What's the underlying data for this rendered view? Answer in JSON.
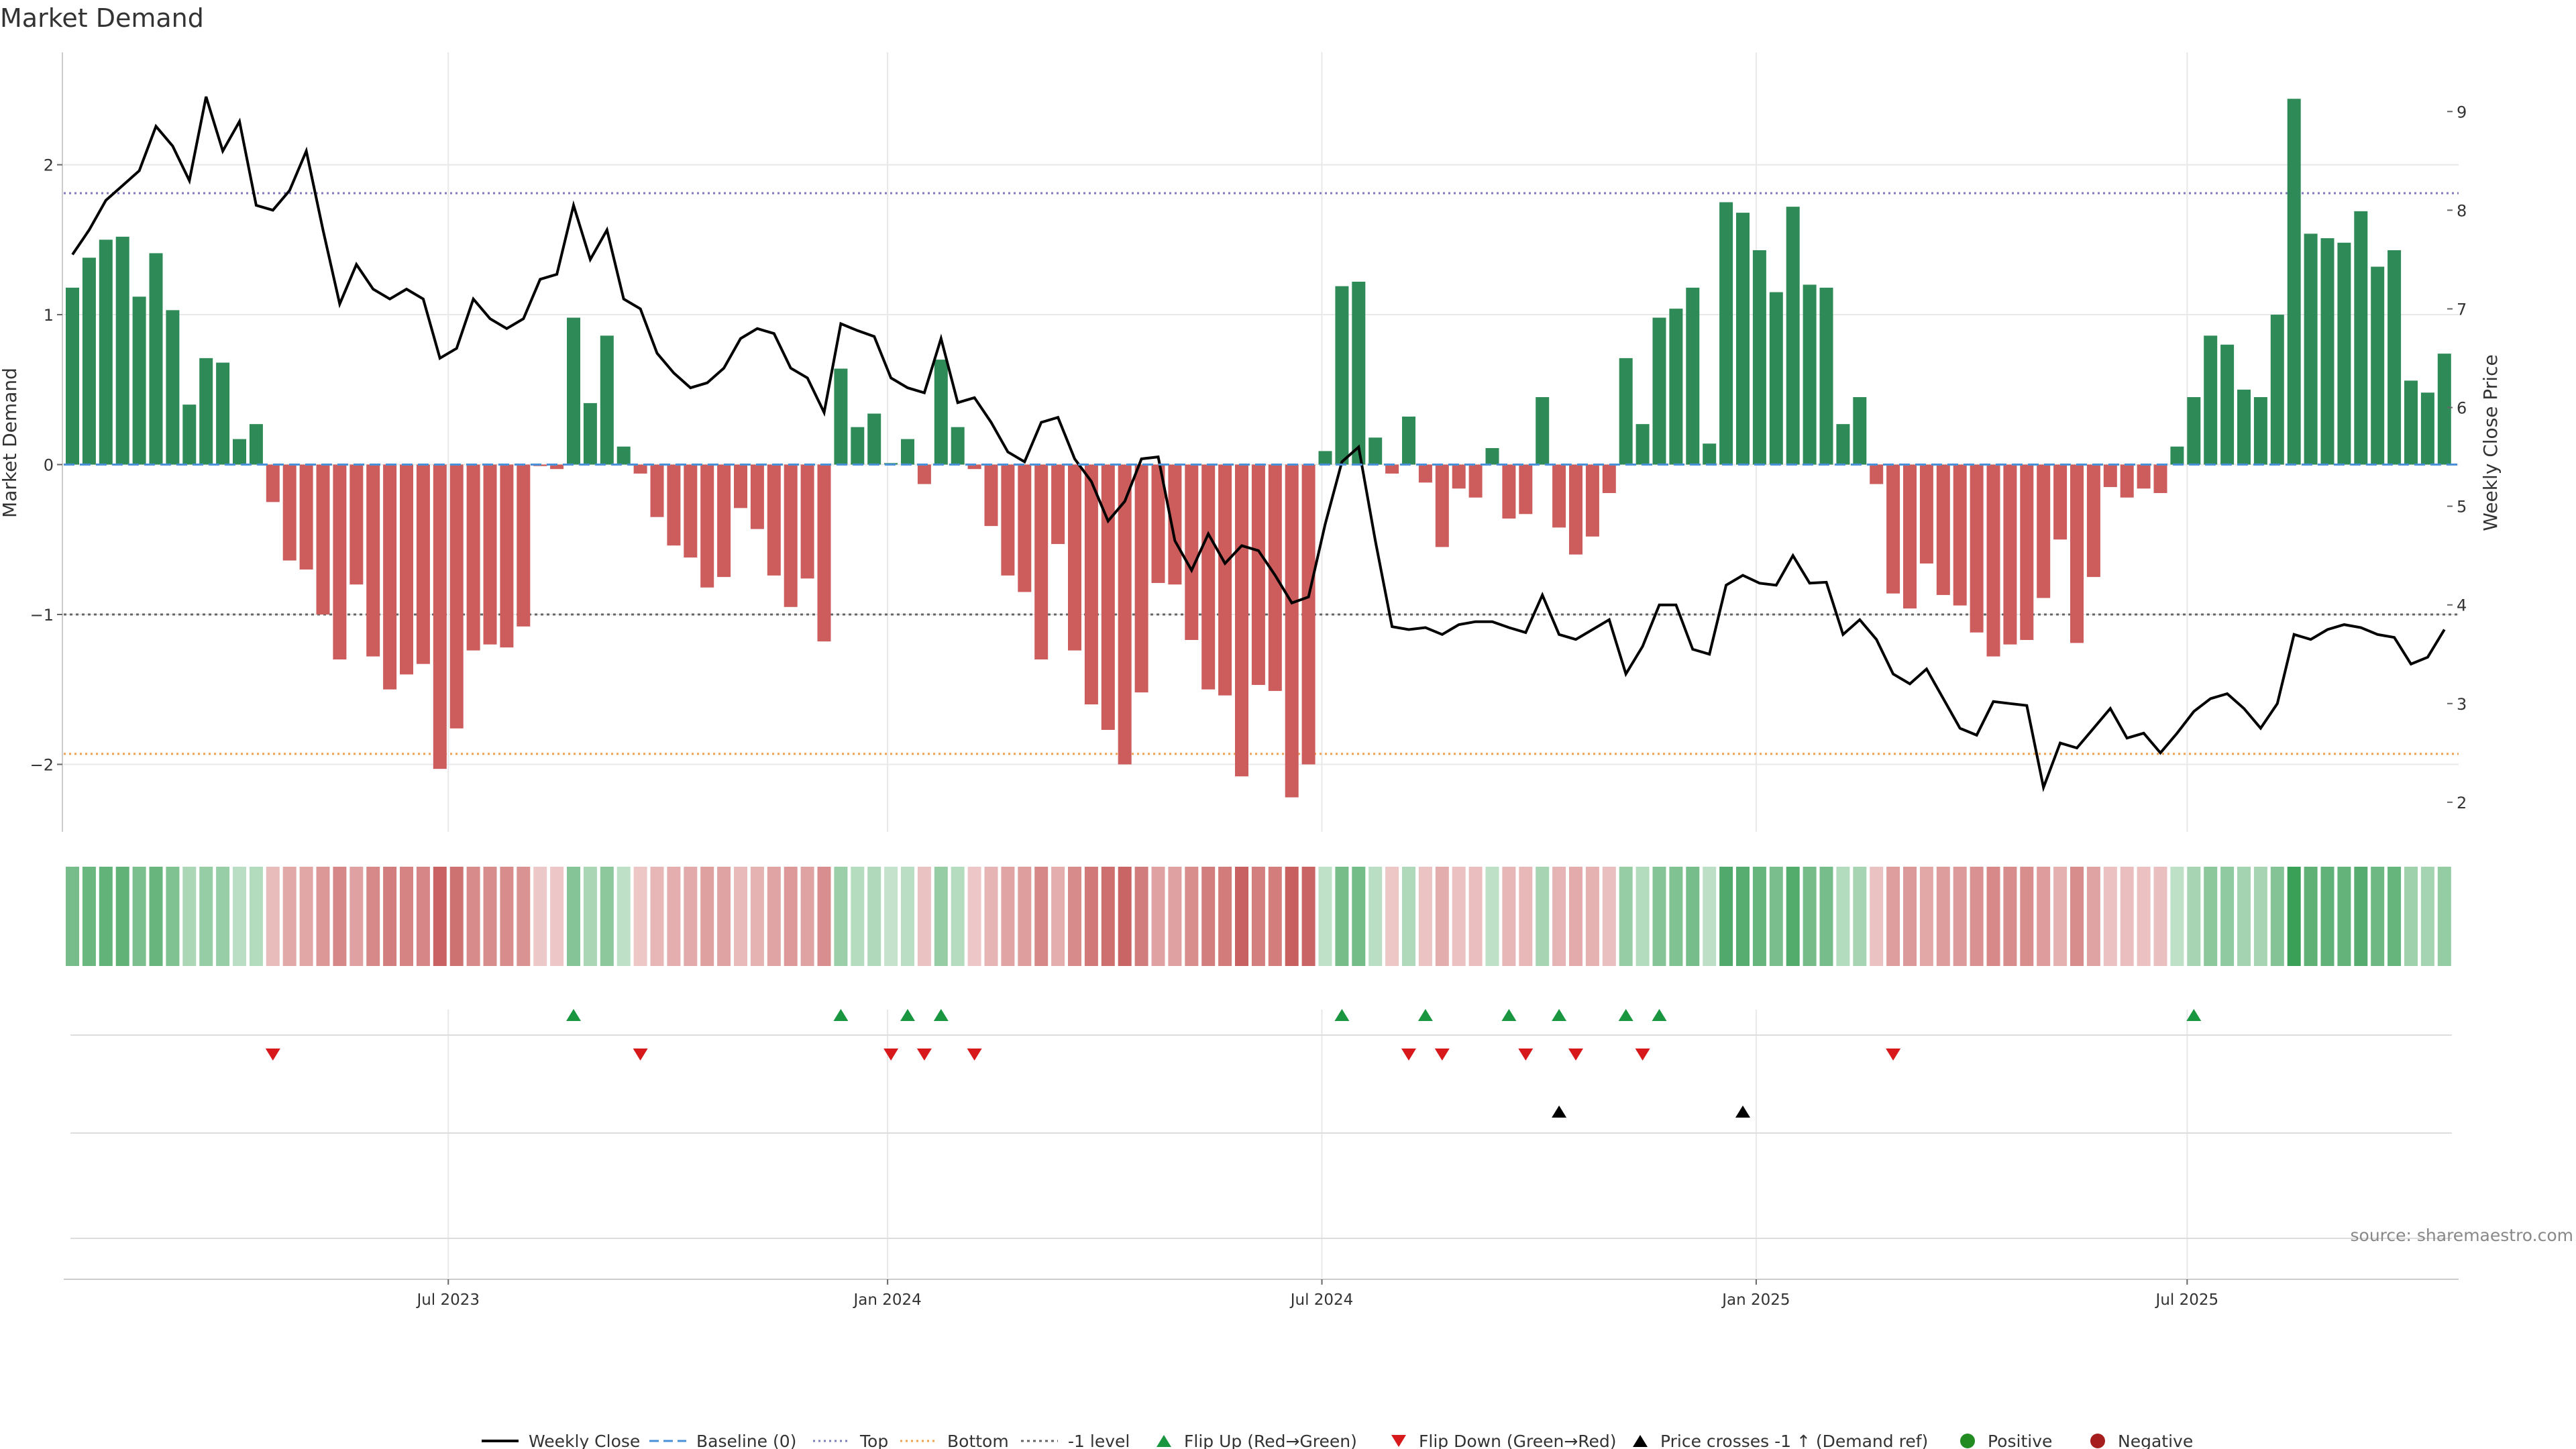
{
  "chart_data": {
    "type": "bar",
    "title": "Market Demand",
    "ylabel": "Market Demand",
    "y2label": "Weekly Close Price",
    "ylim": [
      -2.45,
      2.75
    ],
    "y2lim": [
      1.7,
      9.6
    ],
    "y_ticks": [
      2,
      1,
      0,
      -1,
      -2
    ],
    "y_tick_labels": [
      "2",
      "1",
      "0",
      "−1",
      "−2"
    ],
    "y2_ticks": [
      9,
      8,
      7,
      6,
      5,
      4,
      3,
      2
    ],
    "y2_tick_labels": [
      "9",
      "8",
      "7",
      "6",
      "5",
      "4",
      "3",
      "2"
    ],
    "x_tick_labels": [
      "Jul 2023",
      "Jan 2024",
      "Jul 2024",
      "Jan 2025",
      "Jul 2025"
    ],
    "x_tick_weeks": [
      22.5,
      48.8,
      74.8,
      100.8,
      126.6
    ],
    "reference_lines": {
      "top": 1.81,
      "bottom": -1.93,
      "minus_one": -1.0,
      "baseline": 0
    },
    "colors": {
      "positive": "#2e8b57",
      "negative": "#cd5c5c",
      "price": "#000000",
      "flip_up": "#1a9641",
      "flip_down": "#d7191c",
      "top": "#7b7bb5",
      "bottom": "#f0a050",
      "baseline": "#4a90d9",
      "grid": "#e8e8e8"
    },
    "demand": [
      1.18,
      1.38,
      1.5,
      1.52,
      1.12,
      1.41,
      1.03,
      0.4,
      0.71,
      0.68,
      0.17,
      0.27,
      -0.25,
      -0.64,
      -0.7,
      -1.0,
      -1.3,
      -0.8,
      -1.28,
      -1.5,
      -1.4,
      -1.33,
      -2.03,
      -1.76,
      -1.24,
      -1.2,
      -1.22,
      -1.08,
      -0.01,
      -0.03,
      0.98,
      0.41,
      0.86,
      0.12,
      -0.06,
      -0.35,
      -0.54,
      -0.62,
      -0.82,
      -0.75,
      -0.29,
      -0.43,
      -0.74,
      -0.95,
      -0.76,
      -1.18,
      0.64,
      0.25,
      0.34,
      0.01,
      0.17,
      -0.13,
      0.7,
      0.25,
      -0.03,
      -0.41,
      -0.74,
      -0.85,
      -1.3,
      -0.53,
      -1.24,
      -1.6,
      -1.77,
      -2.0,
      -1.52,
      -0.79,
      -0.8,
      -1.17,
      -1.5,
      -1.54,
      -2.08,
      -1.47,
      -1.51,
      -2.22,
      -2.0,
      0.09,
      1.19,
      1.22,
      0.18,
      -0.06,
      0.32,
      -0.12,
      -0.55,
      -0.16,
      -0.22,
      0.11,
      -0.36,
      -0.33,
      0.45,
      -0.42,
      -0.6,
      -0.48,
      -0.19,
      0.71,
      0.27,
      0.98,
      1.04,
      1.18,
      0.14,
      1.75,
      1.68,
      1.43,
      1.15,
      1.72,
      1.2,
      1.18,
      0.27,
      0.45,
      -0.13,
      -0.86,
      -0.96,
      -0.66,
      -0.87,
      -0.94,
      -1.12,
      -1.28,
      -1.2,
      -1.17,
      -0.89,
      -0.5,
      -1.19,
      -0.75,
      -0.15,
      -0.22,
      -0.16,
      -0.19,
      0.12,
      0.45,
      0.86,
      0.8,
      0.5,
      0.45,
      1.0,
      2.44,
      1.54,
      1.51,
      1.48,
      1.69,
      1.32,
      1.43,
      0.56,
      0.48,
      0.74
    ],
    "price": [
      7.55,
      7.8,
      8.1,
      8.25,
      8.4,
      8.85,
      8.65,
      8.3,
      9.15,
      8.6,
      8.9,
      8.05,
      8.0,
      8.2,
      8.6,
      7.8,
      7.05,
      7.45,
      7.2,
      7.1,
      7.2,
      7.1,
      6.5,
      6.6,
      7.1,
      6.9,
      6.8,
      6.9,
      7.3,
      7.35,
      8.05,
      7.5,
      7.8,
      7.1,
      7.0,
      6.55,
      6.35,
      6.2,
      6.25,
      6.4,
      6.7,
      6.8,
      6.75,
      6.4,
      6.3,
      5.95,
      6.85,
      6.78,
      6.72,
      6.3,
      6.2,
      6.15,
      6.7,
      6.05,
      6.1,
      5.85,
      5.55,
      5.45,
      5.85,
      5.9,
      5.48,
      5.25,
      4.85,
      5.05,
      5.48,
      5.5,
      4.65,
      4.35,
      4.72,
      4.42,
      4.6,
      4.55,
      4.3,
      4.02,
      4.08,
      4.82,
      5.45,
      5.6,
      4.65,
      3.78,
      3.75,
      3.77,
      3.7,
      3.8,
      3.83,
      3.83,
      3.77,
      3.72,
      4.1,
      3.7,
      3.65,
      3.75,
      3.85,
      3.3,
      3.58,
      4.0,
      4.0,
      3.55,
      3.5,
      4.2,
      4.3,
      4.22,
      4.2,
      4.5,
      4.22,
      4.23,
      3.7,
      3.85,
      3.65,
      3.3,
      3.2,
      3.35,
      3.05,
      2.75,
      2.68,
      3.02,
      3.0,
      2.98,
      2.15,
      2.6,
      2.55,
      2.75,
      2.95,
      2.65,
      2.7,
      2.5,
      2.7,
      2.92,
      3.05,
      3.1,
      2.95,
      2.75,
      3.0,
      3.7,
      3.65,
      3.75,
      3.8,
      3.77,
      3.7,
      3.67,
      3.4,
      3.47,
      3.75
    ],
    "flip_up_weeks": [
      30,
      46,
      50,
      52,
      76,
      81,
      86,
      89,
      93,
      95,
      127
    ],
    "flip_down_weeks": [
      12,
      34,
      49,
      51,
      54,
      80,
      82,
      87,
      90,
      94,
      109
    ],
    "price_cross_weeks": [
      89,
      100
    ],
    "legend": [
      {
        "key": "line-solid",
        "label": "Weekly Close"
      },
      {
        "key": "line-baseline",
        "label": "Baseline (0)"
      },
      {
        "key": "line-top",
        "label": "Top"
      },
      {
        "key": "line-bottom",
        "label": "Bottom"
      },
      {
        "key": "line-minus1",
        "label": "-1 level"
      },
      {
        "key": "tri-up-green",
        "label": "Flip Up (Red→Green)"
      },
      {
        "key": "tri-down-red",
        "label": "Flip Down (Green→Red)"
      },
      {
        "key": "tri-up-black",
        "label": "Price crosses -1 ↑ (Demand ref)"
      },
      {
        "key": "dot-green",
        "label": "Positive"
      },
      {
        "key": "dot-red",
        "label": "Negative"
      }
    ]
  },
  "source": "source: sharemaestro.com"
}
